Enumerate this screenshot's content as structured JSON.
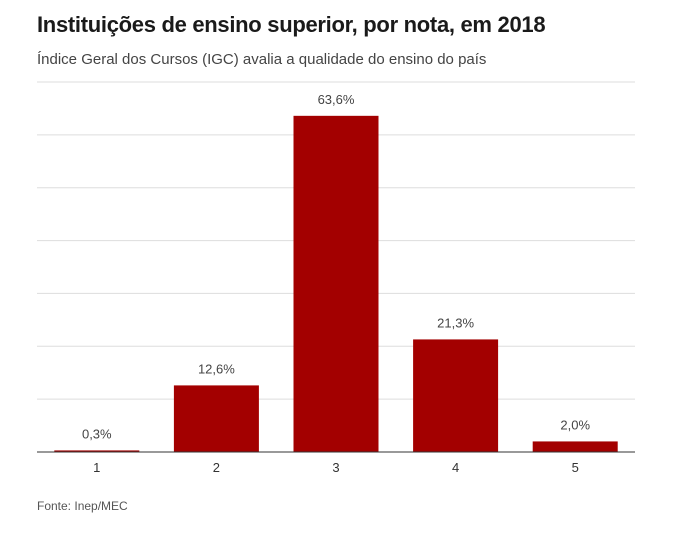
{
  "header": {
    "title": "Instituições de ensino superior, por nota, em 2018",
    "subtitle": "Índice Geral dos Cursos (IGC) avalia a qualidade do ensino do país"
  },
  "footer": {
    "source": "Fonte: Inep/MEC"
  },
  "colors": {
    "bar": "#a30000",
    "grid": "#dddddd",
    "axis": "#333333"
  },
  "chart_data": {
    "type": "bar",
    "title": "Instituições de ensino superior, por nota, em 2018",
    "subtitle": "Índice Geral dos Cursos (IGC) avalia a qualidade do ensino do país",
    "categories": [
      "1",
      "2",
      "3",
      "4",
      "5"
    ],
    "values": [
      0.3,
      12.6,
      63.6,
      21.3,
      2.0
    ],
    "data_labels": [
      "0,3%",
      "12,6%",
      "63,6%",
      "21,3%",
      "2,0%"
    ],
    "xlabel": "",
    "ylabel": "",
    "ylim": [
      0,
      70
    ],
    "grid": true,
    "legend": "none"
  }
}
